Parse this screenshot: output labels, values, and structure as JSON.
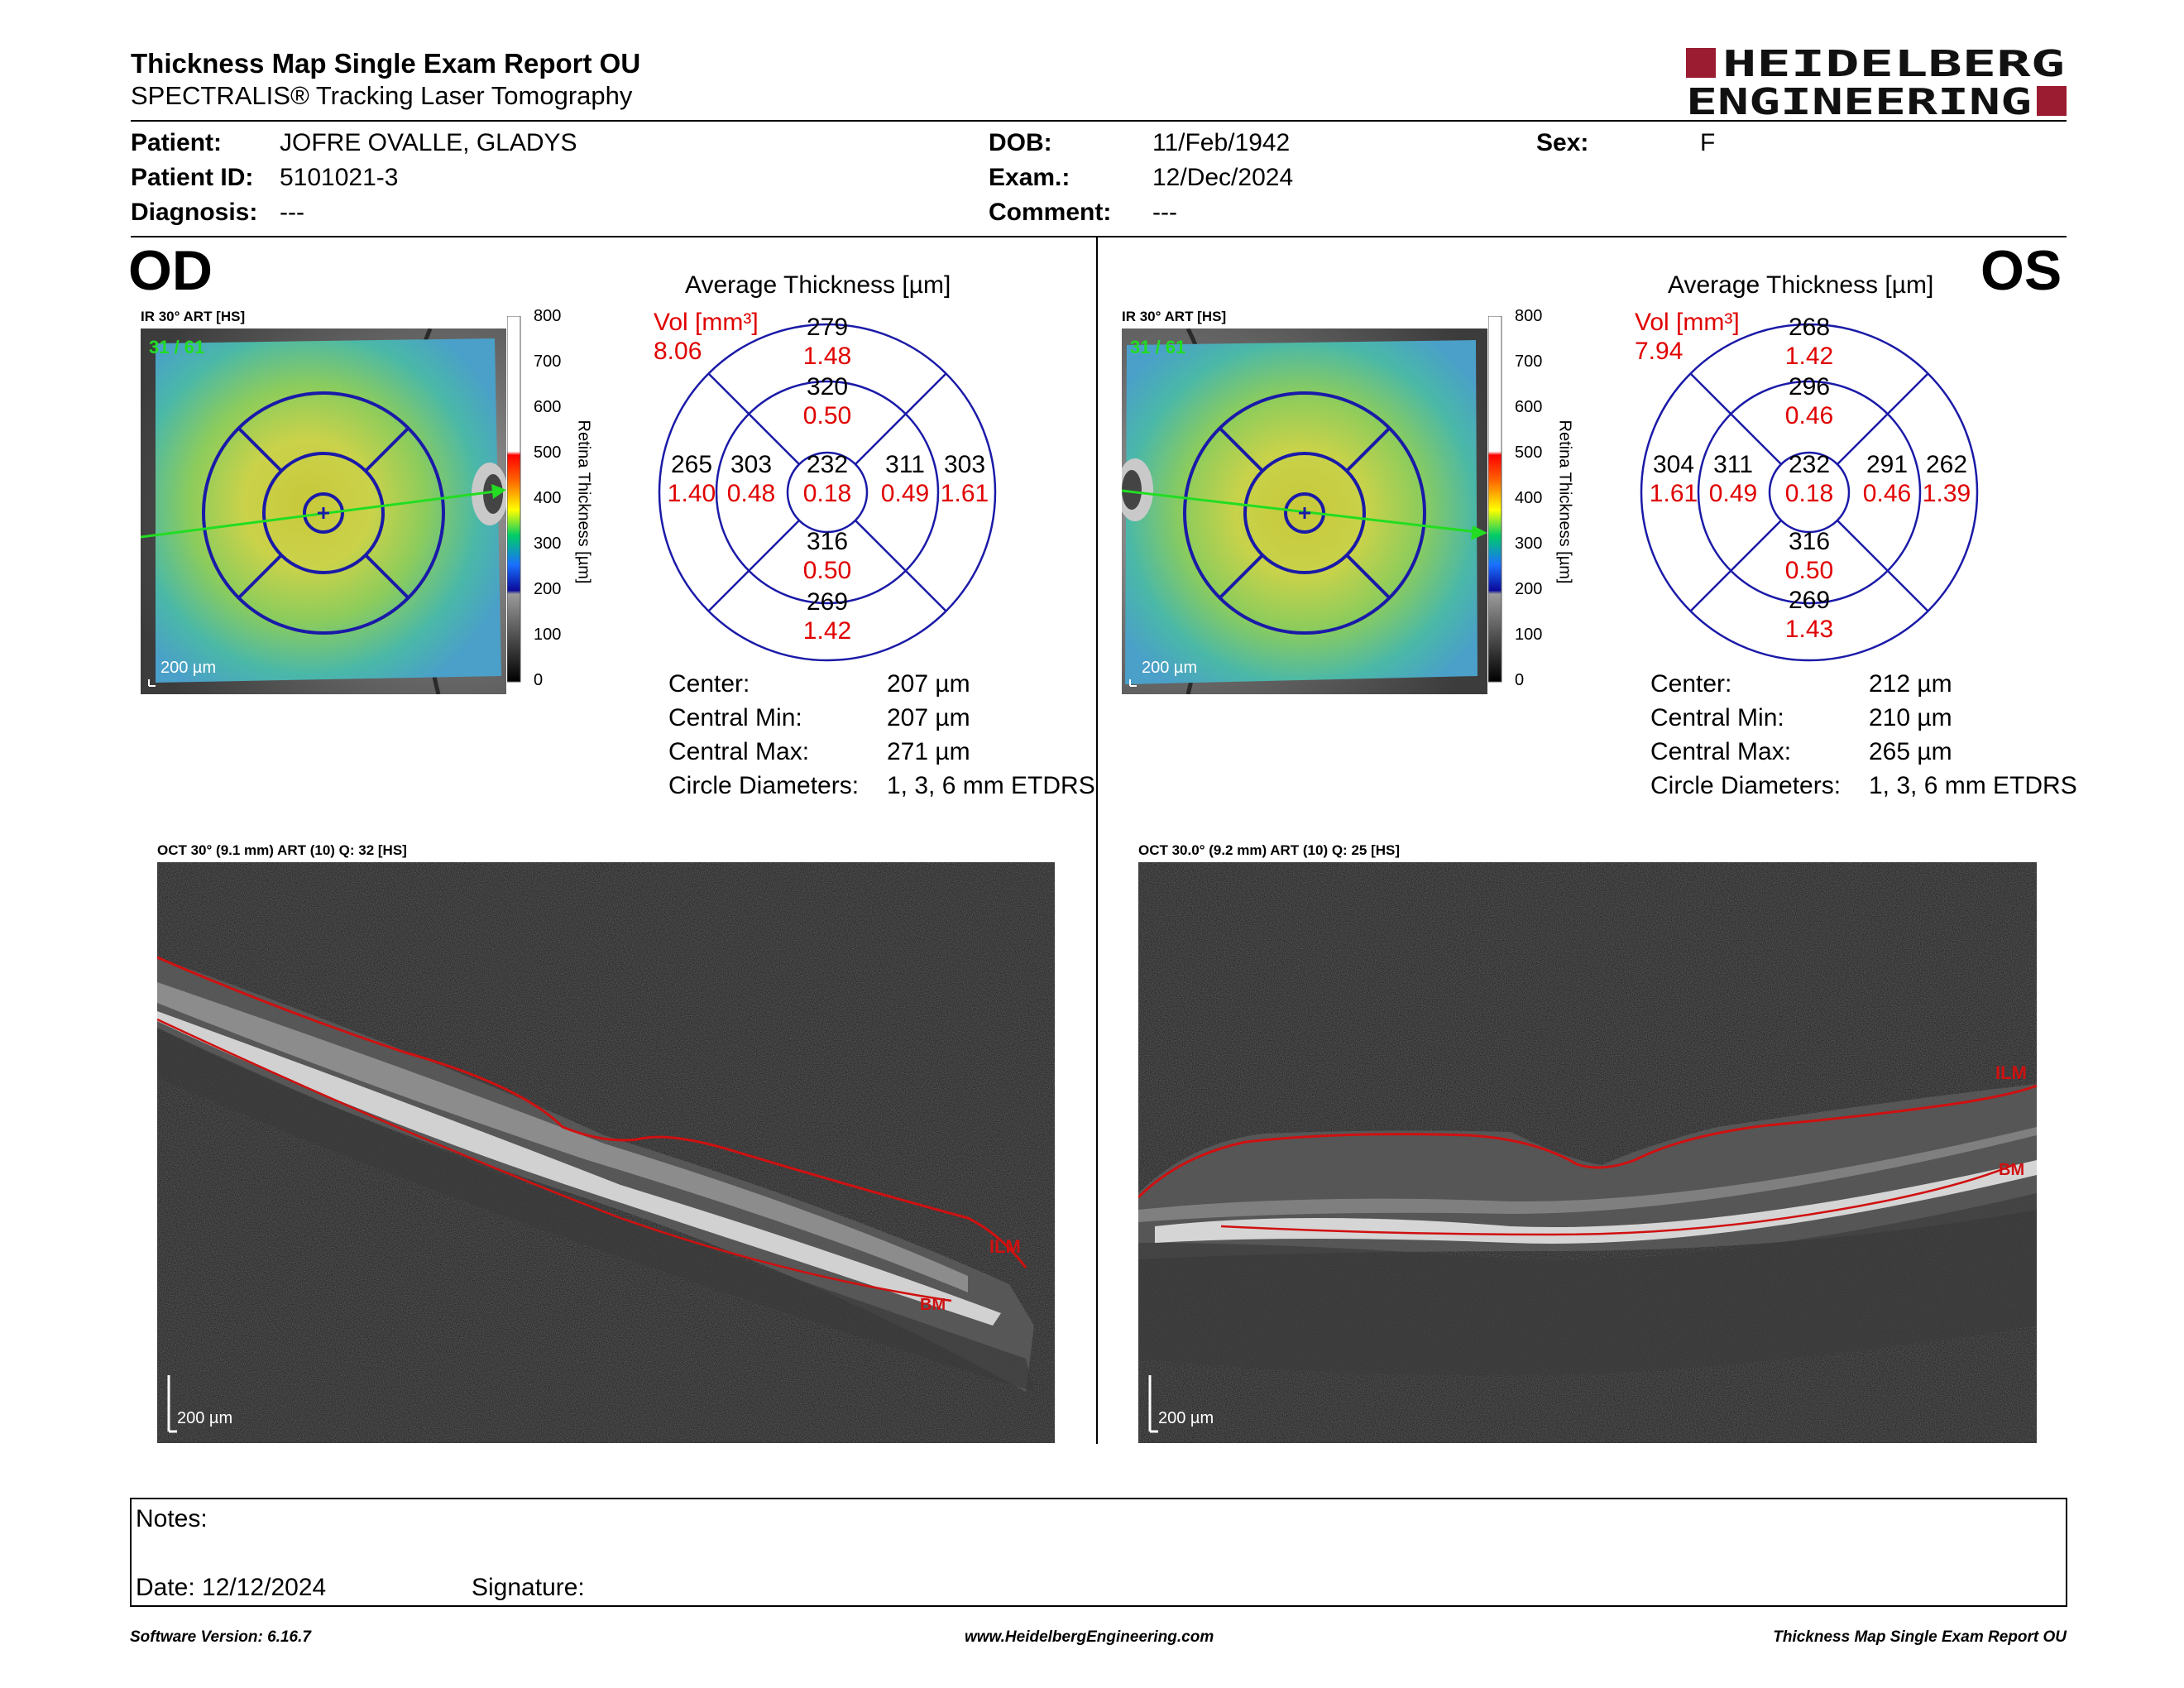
{
  "header": {
    "title": "Thickness Map Single Exam Report OU",
    "subtitle": "SPECTRALIS® Tracking Laser Tomography",
    "logo_line1": "HEIDELBERG",
    "logo_line2": "ENGINEERING",
    "logo_color": "#9b1b30"
  },
  "patient": {
    "patient_label": "Patient:",
    "patient_value": "JOFRE OVALLE, GLADYS",
    "id_label": "Patient ID:",
    "id_value": "5101021-3",
    "diagnosis_label": "Diagnosis:",
    "diagnosis_value": "---",
    "dob_label": "DOB:",
    "dob_value": "11/Feb/1942",
    "exam_label": "Exam.:",
    "exam_value": "12/Dec/2024",
    "comment_label": "Comment:",
    "comment_value": "---",
    "sex_label": "Sex:",
    "sex_value": "F"
  },
  "colorbar": {
    "title": "Retina Thickness [µm]",
    "ticks": [
      "800",
      "700",
      "600",
      "500",
      "400",
      "300",
      "200",
      "100",
      "0"
    ]
  },
  "od": {
    "eye_label": "OD",
    "map_label": "IR 30° ART [HS]",
    "map_counter": "31 / 61",
    "map_scale": "200 µm",
    "avg_title": "Average Thickness [µm]",
    "vol_label": "Vol [mm³]",
    "vol_value": "8.06",
    "sectors": {
      "sup_outer": [
        "279",
        "1.48"
      ],
      "sup_inner": [
        "320",
        "0.50"
      ],
      "center": [
        "232",
        "0.18"
      ],
      "temp_outer": [
        "265",
        "1.40"
      ],
      "temp_inner": [
        "303",
        "0.48"
      ],
      "nas_inner": [
        "311",
        "0.49"
      ],
      "nas_outer": [
        "303",
        "1.61"
      ],
      "inf_inner": [
        "316",
        "0.50"
      ],
      "inf_outer": [
        "269",
        "1.42"
      ]
    },
    "stats": [
      {
        "label": "Center:",
        "value": "207 µm"
      },
      {
        "label": "Central Min:",
        "value": "207 µm"
      },
      {
        "label": "Central Max:",
        "value": "271 µm"
      },
      {
        "label": "Circle Diameters:",
        "value": "1, 3, 6 mm ETDRS"
      }
    ],
    "oct_label": "OCT 30° (9.1 mm) ART (10) Q: 32 [HS]",
    "oct_scale": "200 µm",
    "ilm": "ILM",
    "bm": "BM"
  },
  "os": {
    "eye_label": "OS",
    "map_label": "IR 30° ART [HS]",
    "map_counter": "31 / 61",
    "map_scale": "200 µm",
    "avg_title": "Average Thickness [µm]",
    "vol_label": "Vol [mm³]",
    "vol_value": "7.94",
    "sectors": {
      "sup_outer": [
        "268",
        "1.42"
      ],
      "sup_inner": [
        "296",
        "0.46"
      ],
      "center": [
        "232",
        "0.18"
      ],
      "temp_outer": [
        "304",
        "1.61"
      ],
      "temp_inner": [
        "311",
        "0.49"
      ],
      "nas_inner": [
        "291",
        "0.46"
      ],
      "nas_outer": [
        "262",
        "1.39"
      ],
      "inf_inner": [
        "316",
        "0.50"
      ],
      "inf_outer": [
        "269",
        "1.43"
      ]
    },
    "stats": [
      {
        "label": "Center:",
        "value": "212 µm"
      },
      {
        "label": "Central Min:",
        "value": "210 µm"
      },
      {
        "label": "Central Max:",
        "value": "265 µm"
      },
      {
        "label": "Circle Diameters:",
        "value": "1, 3, 6 mm ETDRS"
      }
    ],
    "oct_label": "OCT 30.0° (9.2 mm) ART (10) Q: 25 [HS]",
    "oct_scale": "200 µm",
    "ilm": "ILM",
    "bm": "BM"
  },
  "notes": {
    "notes_label": "Notes:",
    "date_label": "Date: 12/12/2024",
    "signature_label": "Signature:"
  },
  "footer": {
    "version": "Software Version: 6.16.7",
    "website": "www.HeidelbergEngineering.com",
    "report_name": "Thickness Map Single Exam Report OU"
  },
  "colors": {
    "grid_blue": "#1a1aa8",
    "value_red": "#e00000",
    "layer_red": "#d01010",
    "arrow_green": "#22dd22"
  }
}
